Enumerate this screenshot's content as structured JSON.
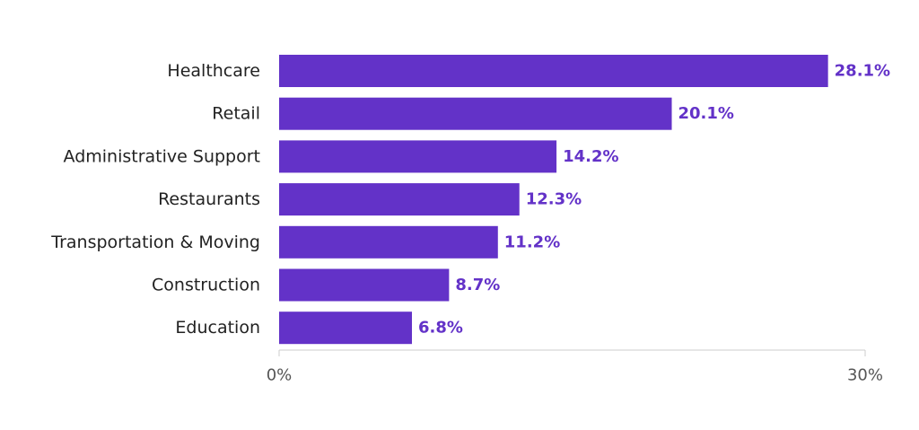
{
  "chart_data": {
    "type": "bar",
    "orientation": "horizontal",
    "categories": [
      "Healthcare",
      "Retail",
      "Administrative Support",
      "Restaurants",
      "Transportation & Moving",
      "Construction",
      "Education"
    ],
    "values": [
      28.1,
      20.1,
      14.2,
      12.3,
      11.2,
      8.7,
      6.8
    ],
    "value_labels": [
      "28.1%",
      "20.1%",
      "14.2%",
      "12.3%",
      "11.2%",
      "8.7%",
      "6.8%"
    ],
    "xlim": [
      0,
      30
    ],
    "x_ticks": [
      {
        "value": 0,
        "label": "0%"
      },
      {
        "value": 30,
        "label": "30%"
      }
    ],
    "grid": false,
    "title": "",
    "xlabel": "",
    "ylabel": "",
    "colors": {
      "bar": "#6332c8",
      "value_label": "#6332c8",
      "axis": "#cccccc"
    }
  }
}
